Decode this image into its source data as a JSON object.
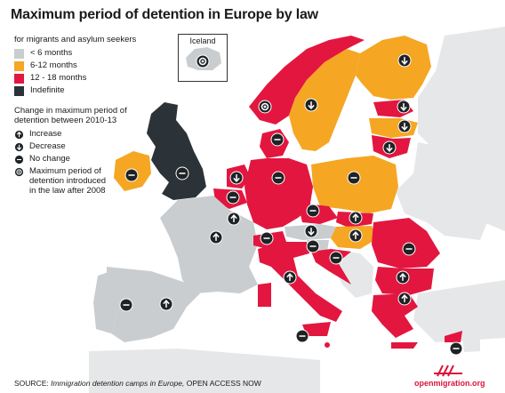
{
  "title": "Maximum period of detention in Europe by law",
  "legend": {
    "subtitle": "for migrants and asylum seekers",
    "categories": [
      {
        "label": "< 6 months",
        "color": "#c9cdd0"
      },
      {
        "label": "6-12 months",
        "color": "#f5a623"
      },
      {
        "label": "12 - 18 months",
        "color": "#e3163f"
      },
      {
        "label": "Indefinite",
        "color": "#2b3338"
      }
    ],
    "change_title": "Change in maximum period of detention between 2010-13",
    "changes": [
      {
        "key": "increase",
        "label": "Increase",
        "icon": "arrow-up-icon"
      },
      {
        "key": "decrease",
        "label": "Decrease",
        "icon": "arrow-down-icon"
      },
      {
        "key": "nochange",
        "label": "No change",
        "icon": "minus-icon"
      },
      {
        "key": "new",
        "label": "Maximum period of detention introduced in the law after 2008",
        "icon": "dot-icon"
      }
    ]
  },
  "inset": {
    "label": "Iceland",
    "category": 0,
    "change": "new"
  },
  "countries": [
    {
      "name": "Norway",
      "category": 2,
      "change": "new"
    },
    {
      "name": "Sweden",
      "category": 1,
      "change": "decrease"
    },
    {
      "name": "Finland",
      "category": 1,
      "change": "decrease"
    },
    {
      "name": "Estonia",
      "category": 2,
      "change": "decrease"
    },
    {
      "name": "Latvia",
      "category": 1,
      "change": "decrease"
    },
    {
      "name": "Lithuania",
      "category": 2,
      "change": "decrease"
    },
    {
      "name": "United Kingdom",
      "category": 3,
      "change": "nochange"
    },
    {
      "name": "Ireland",
      "category": 1,
      "change": "nochange"
    },
    {
      "name": "Denmark",
      "category": 2,
      "change": "nochange"
    },
    {
      "name": "Netherlands",
      "category": 2,
      "change": "decrease"
    },
    {
      "name": "Belgium",
      "category": 2,
      "change": "nochange"
    },
    {
      "name": "Luxembourg",
      "category": 2,
      "change": "increase"
    },
    {
      "name": "Germany",
      "category": 2,
      "change": "nochange"
    },
    {
      "name": "Poland",
      "category": 1,
      "change": "nochange"
    },
    {
      "name": "France",
      "category": 0,
      "change": "increase"
    },
    {
      "name": "Czech Republic",
      "category": 2,
      "change": "nochange"
    },
    {
      "name": "Slovakia",
      "category": 2,
      "change": "increase"
    },
    {
      "name": "Austria",
      "category": 0,
      "change": "decrease"
    },
    {
      "name": "Switzerland",
      "category": 2,
      "change": "nochange"
    },
    {
      "name": "Slovenia",
      "category": 0,
      "change": "nochange"
    },
    {
      "name": "Hungary",
      "category": 1,
      "change": "increase"
    },
    {
      "name": "Croatia",
      "category": 2,
      "change": "nochange"
    },
    {
      "name": "Romania",
      "category": 2,
      "change": "nochange"
    },
    {
      "name": "Bulgaria",
      "category": 2,
      "change": "increase"
    },
    {
      "name": "Italy",
      "category": 2,
      "change": "increase"
    },
    {
      "name": "Spain",
      "category": 0,
      "change": "increase"
    },
    {
      "name": "Portugal",
      "category": 0,
      "change": "nochange"
    },
    {
      "name": "Greece",
      "category": 2,
      "change": "increase"
    },
    {
      "name": "Malta",
      "category": 2,
      "change": "nochange"
    },
    {
      "name": "Cyprus",
      "category": 2,
      "change": "nochange"
    }
  ],
  "colors": {
    "sea": "#ffffff",
    "non_eu": "#e6e7e8",
    "icon_dark": "#1f2326"
  },
  "footer": {
    "source_label": "SOURCE:",
    "source_title": "Immigration detention camps in Europe,",
    "source_org": "OPEN ACCESS NOW",
    "brand": "openmigration.org"
  }
}
